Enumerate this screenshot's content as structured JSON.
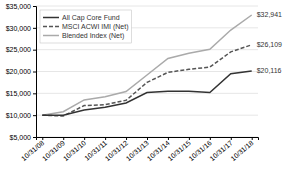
{
  "chart_data": {
    "type": "line",
    "categories": [
      "10/31/08",
      "10/31/09",
      "10/31/10",
      "10/31/11",
      "10/31/12",
      "10/31/13",
      "10/31/14",
      "10/31/15",
      "10/31/16",
      "10/31/17",
      "10/31/18"
    ],
    "series": [
      {
        "name": "All Cap Core Fund",
        "color": "#333333",
        "line_style": "solid",
        "values": [
          10000,
          10000,
          11200,
          11800,
          12800,
          15200,
          15500,
          15500,
          15200,
          19500,
          20116
        ]
      },
      {
        "name": "MSCI ACWI IMI (Net)",
        "color": "#555555",
        "line_style": "dashed",
        "values": [
          10000,
          9800,
          12200,
          12400,
          13400,
          17500,
          19800,
          20500,
          21000,
          24500,
          26109
        ]
      },
      {
        "name": "Blended Index (Net)",
        "color": "#aaaaaa",
        "line_style": "solid",
        "values": [
          10000,
          10800,
          13500,
          14200,
          15400,
          19200,
          23000,
          24200,
          25100,
          29500,
          32941
        ]
      }
    ],
    "ylim": [
      5000,
      35000
    ],
    "yticks": [
      {
        "value": 5000,
        "label": "$5,000"
      },
      {
        "value": 10000,
        "label": "$10,000"
      },
      {
        "value": 15000,
        "label": "$15,000"
      },
      {
        "value": 20000,
        "label": "$20,000"
      },
      {
        "value": 25000,
        "label": "$25,000"
      },
      {
        "value": 30000,
        "label": "$30,000"
      },
      {
        "value": 35000,
        "label": "$35,000"
      }
    ],
    "annotations": [
      {
        "text": "$32,941",
        "x": "10/31/18",
        "y": 32941
      },
      {
        "text": "$26,109",
        "x": "10/31/18",
        "y": 26109
      },
      {
        "text": "$20,116",
        "x": "10/31/18",
        "y": 20116
      }
    ],
    "grid": true,
    "legend": "top-left"
  }
}
